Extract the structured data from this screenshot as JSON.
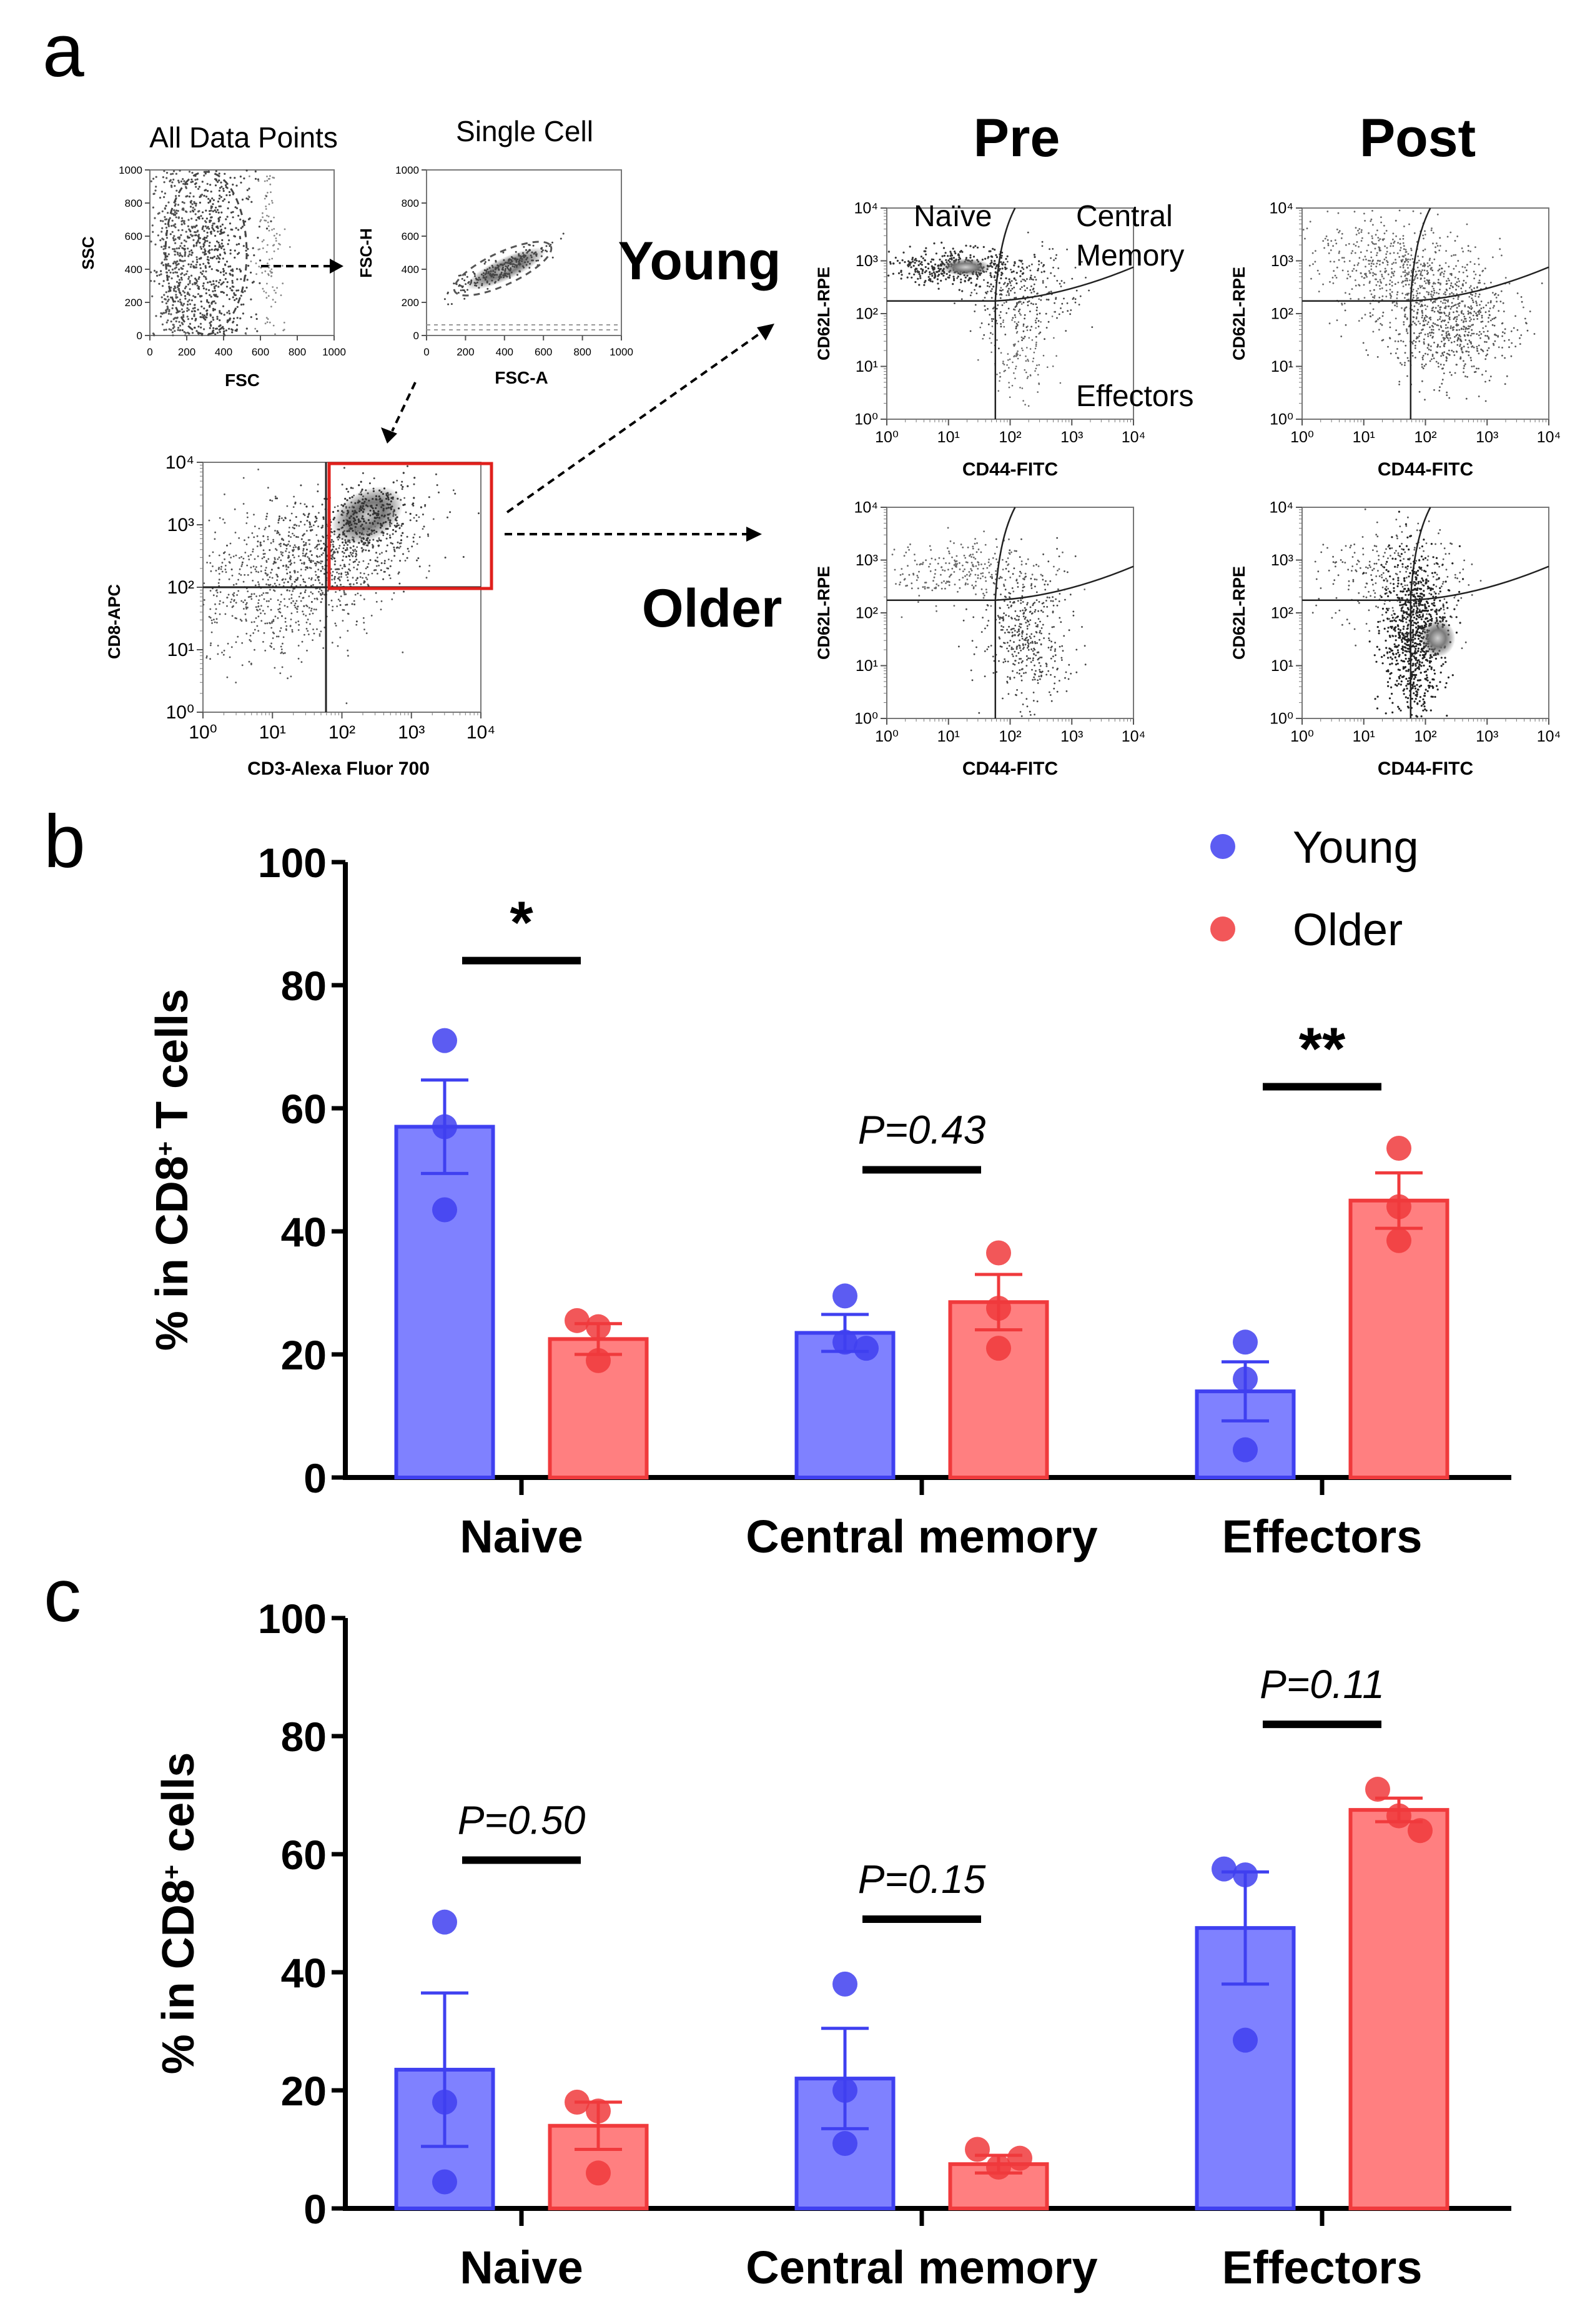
{
  "panel_a": {
    "letter": "a",
    "gating": {
      "all_points": {
        "title": "All Data Points",
        "xlabel": "FSC",
        "ylabel": "SSC",
        "xticks": [
          "0",
          "200",
          "400",
          "600",
          "800",
          "1000"
        ],
        "yticks": [
          "0",
          "200",
          "400",
          "600",
          "800",
          "1000"
        ]
      },
      "single_cell": {
        "title": "Single Cell",
        "xlabel": "FSC-A",
        "ylabel": "FSC-H",
        "xticks": [
          "0",
          "200",
          "400",
          "600",
          "800",
          "1000"
        ],
        "yticks": [
          "0",
          "200",
          "400",
          "600",
          "800",
          "1000"
        ]
      },
      "cd8": {
        "xlabel": "CD3-Alexa Fluor 700",
        "ylabel": "CD8-APC",
        "ticks": [
          "10⁰",
          "10¹",
          "10²",
          "10³",
          "10⁴"
        ]
      }
    },
    "col_pre": "Pre",
    "col_post": "Post",
    "row_young": "Young",
    "row_older": "Older",
    "quad": {
      "naive": "Naïve",
      "central1": "Central",
      "central2": "Memory",
      "effectors": "Effectors"
    },
    "xlabel": "CD44-FITC",
    "ylabel": "CD62L-RPE",
    "log_ticks": [
      "10⁰",
      "10¹",
      "10²",
      "10³",
      "10⁴"
    ],
    "colors": {
      "gate": "#e0201c",
      "dots": "#333333"
    }
  },
  "chart_data": [
    {
      "panel": "b",
      "type": "bar",
      "title": "",
      "ylabel_pre": "% in CD8",
      "ylabel_sup": "+",
      "ylabel_post": " T cells",
      "xlabel": "",
      "ylim": [
        0,
        100
      ],
      "yticks": [
        "0",
        "20",
        "40",
        "60",
        "80",
        "100"
      ],
      "categories": [
        "Naive",
        "Central memory",
        "Effectors"
      ],
      "legend": [
        "Young",
        "Older"
      ],
      "colors": {
        "young": "#7f81ff",
        "young_edge": "#3f40f0",
        "older": "#ff7f80",
        "older_edge": "#f03a3c"
      },
      "series": [
        {
          "name": "Young",
          "values": [
            57,
            23.5,
            14
          ],
          "sem": [
            7.6,
            3,
            4.8
          ],
          "points": [
            [
              71,
              57,
              43.5
            ],
            [
              29.5,
              22,
              21
            ],
            [
              22,
              16,
              4.5
            ]
          ]
        },
        {
          "name": "Older",
          "values": [
            22.5,
            28.5,
            45
          ],
          "sem": [
            2.5,
            4.5,
            4.5
          ],
          "points": [
            [
              25.5,
              24.5,
              19
            ],
            [
              36.5,
              27.5,
              21
            ],
            [
              53.5,
              44,
              38.5
            ]
          ]
        }
      ],
      "annotations": [
        {
          "text": "*",
          "category": 0,
          "y": 84
        },
        {
          "text": "P=0.43",
          "category": 1,
          "y": 50
        },
        {
          "text": "**",
          "category": 2,
          "y": 63.5
        }
      ]
    },
    {
      "panel": "c",
      "type": "bar",
      "title": "",
      "ylabel_pre": "% in CD8",
      "ylabel_sup": "+",
      "ylabel_post": " cells",
      "xlabel": "",
      "ylim": [
        0,
        100
      ],
      "yticks": [
        "0",
        "20",
        "40",
        "60",
        "80",
        "100"
      ],
      "categories": [
        "Naive",
        "Central memory",
        "Effectors"
      ],
      "colors": {
        "young": "#7f81ff",
        "young_edge": "#3f40f0",
        "older": "#ff7f80",
        "older_edge": "#f03a3c"
      },
      "series": [
        {
          "name": "Young",
          "values": [
            23.5,
            22,
            47.5
          ],
          "sem": [
            13,
            8.5,
            9.5
          ],
          "points": [
            [
              48.5,
              18,
              4.5
            ],
            [
              38,
              20,
              11
            ],
            [
              57.5,
              56.5,
              28.5
            ]
          ]
        },
        {
          "name": "Older",
          "values": [
            14,
            7.5,
            67.5
          ],
          "sem": [
            4,
            1.5,
            2
          ],
          "points": [
            [
              18,
              16.5,
              6
            ],
            [
              10,
              7,
              8.5
            ],
            [
              71,
              66.5,
              64
            ]
          ]
        }
      ],
      "annotations": [
        {
          "text": "P=0.50",
          "category": 0,
          "y": 59
        },
        {
          "text": "P=0.15",
          "category": 1,
          "y": 49
        },
        {
          "text": "P=0.11",
          "category": 2,
          "y": 82
        }
      ]
    }
  ]
}
